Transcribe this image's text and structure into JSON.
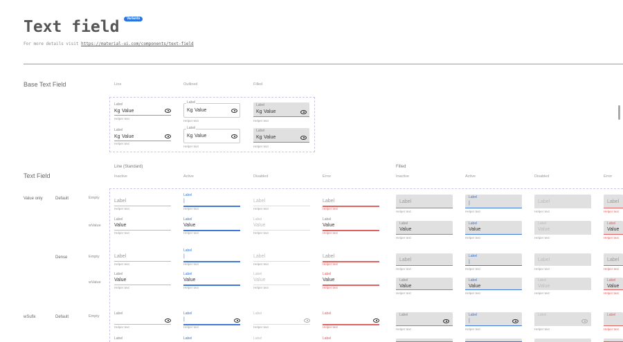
{
  "header": {
    "title": "Text field",
    "badge": "Variants",
    "subtitle_prefix": "For more details visit ",
    "link": "https://material-ui.com/components/text-field"
  },
  "base": {
    "title": "Base Text Field",
    "columns": [
      "Line",
      "Outlined",
      "Filled"
    ],
    "prefix": "Kg",
    "value": "Value"
  },
  "text_field": {
    "title": "Text Field",
    "line_group": "Line (Standard)",
    "filled_group": "Filled",
    "line_columns": [
      "Inactive",
      "Active",
      "Disabled",
      "Error"
    ],
    "filled_columns": [
      "Inactive",
      "Active",
      "Disabled",
      "Error"
    ],
    "rows": [
      {
        "group": "Value only",
        "variant": "Default",
        "kind": "Empty"
      },
      {
        "group": "",
        "variant": "",
        "kind": "wValue"
      },
      {
        "group": "",
        "variant": "Dense",
        "kind": "Empty"
      },
      {
        "group": "",
        "variant": "",
        "kind": "wValue"
      },
      {
        "group": "wSufix",
        "variant": "Default",
        "kind": "Empty"
      },
      {
        "group": "",
        "variant": "",
        "kind": ""
      }
    ]
  },
  "field": {
    "label": "Label",
    "value": "Value",
    "helper": "Helper text",
    "cursor": "|"
  },
  "colors": {
    "active": "#3d78d8",
    "error": "#e06060",
    "filled_bg": "#e0e0e0",
    "badge": "#2a74e0"
  },
  "icons": {
    "suffix": "eye-icon"
  }
}
